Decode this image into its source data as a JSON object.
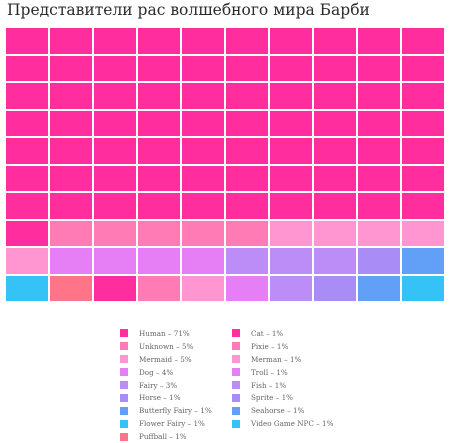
{
  "chart_data": {
    "type": "waffle",
    "title": "Представители рас волшебного мира Барби",
    "unit": "%",
    "categories": [
      {
        "name": "Human",
        "value": 71,
        "color": "#ff2d9d",
        "legend": "Human – 71%"
      },
      {
        "name": "Unknown",
        "value": 5,
        "color": "#ff7bb5",
        "legend": "Unknown – 5%"
      },
      {
        "name": "Mermaid",
        "value": 5,
        "color": "#ff96d2",
        "legend": "Mermaid – 5%"
      },
      {
        "name": "Dog",
        "value": 4,
        "color": "#e67ef6",
        "legend": "Dog – 4%"
      },
      {
        "name": "Fairy",
        "value": 3,
        "color": "#bc8cf7",
        "legend": "Fairy – 3%"
      },
      {
        "name": "Horse",
        "value": 1,
        "color": "#a98cf6",
        "legend": "Horse – 1%"
      },
      {
        "name": "Butterfly Fairy",
        "value": 1,
        "color": "#62a0f7",
        "legend": "Butterfly Fairy – 1%"
      },
      {
        "name": "Flower Fairy",
        "value": 1,
        "color": "#35c2f6",
        "legend": "Flower Fairy – 1%"
      },
      {
        "name": "Puffball",
        "value": 1,
        "color": "#ff7488",
        "legend": "Puffball – 1%"
      },
      {
        "name": "Cat",
        "value": 1,
        "color": "#ff2d9d",
        "legend": "Cat – 1%"
      },
      {
        "name": "Pixie",
        "value": 1,
        "color": "#ff7bb5",
        "legend": "Pixie – 1%"
      },
      {
        "name": "Merman",
        "value": 1,
        "color": "#ff96d2",
        "legend": "Merman – 1%"
      },
      {
        "name": "Troll",
        "value": 1,
        "color": "#e67ef6",
        "legend": "Troll – 1%"
      },
      {
        "name": "Fish",
        "value": 1,
        "color": "#bc8cf7",
        "legend": "Fish – 1%"
      },
      {
        "name": "Sprite",
        "value": 1,
        "color": "#a98cf6",
        "legend": "Sprite – 1%"
      },
      {
        "name": "Seahorse",
        "value": 1,
        "color": "#62a0f7",
        "legend": "Seahorse – 1%"
      },
      {
        "name": "Video Game NPC",
        "value": 1,
        "color": "#35c2f6",
        "legend": "Video Game NPC – 1%"
      }
    ],
    "grid": {
      "rows": 10,
      "cols": 10
    },
    "legend_position": "bottom"
  }
}
